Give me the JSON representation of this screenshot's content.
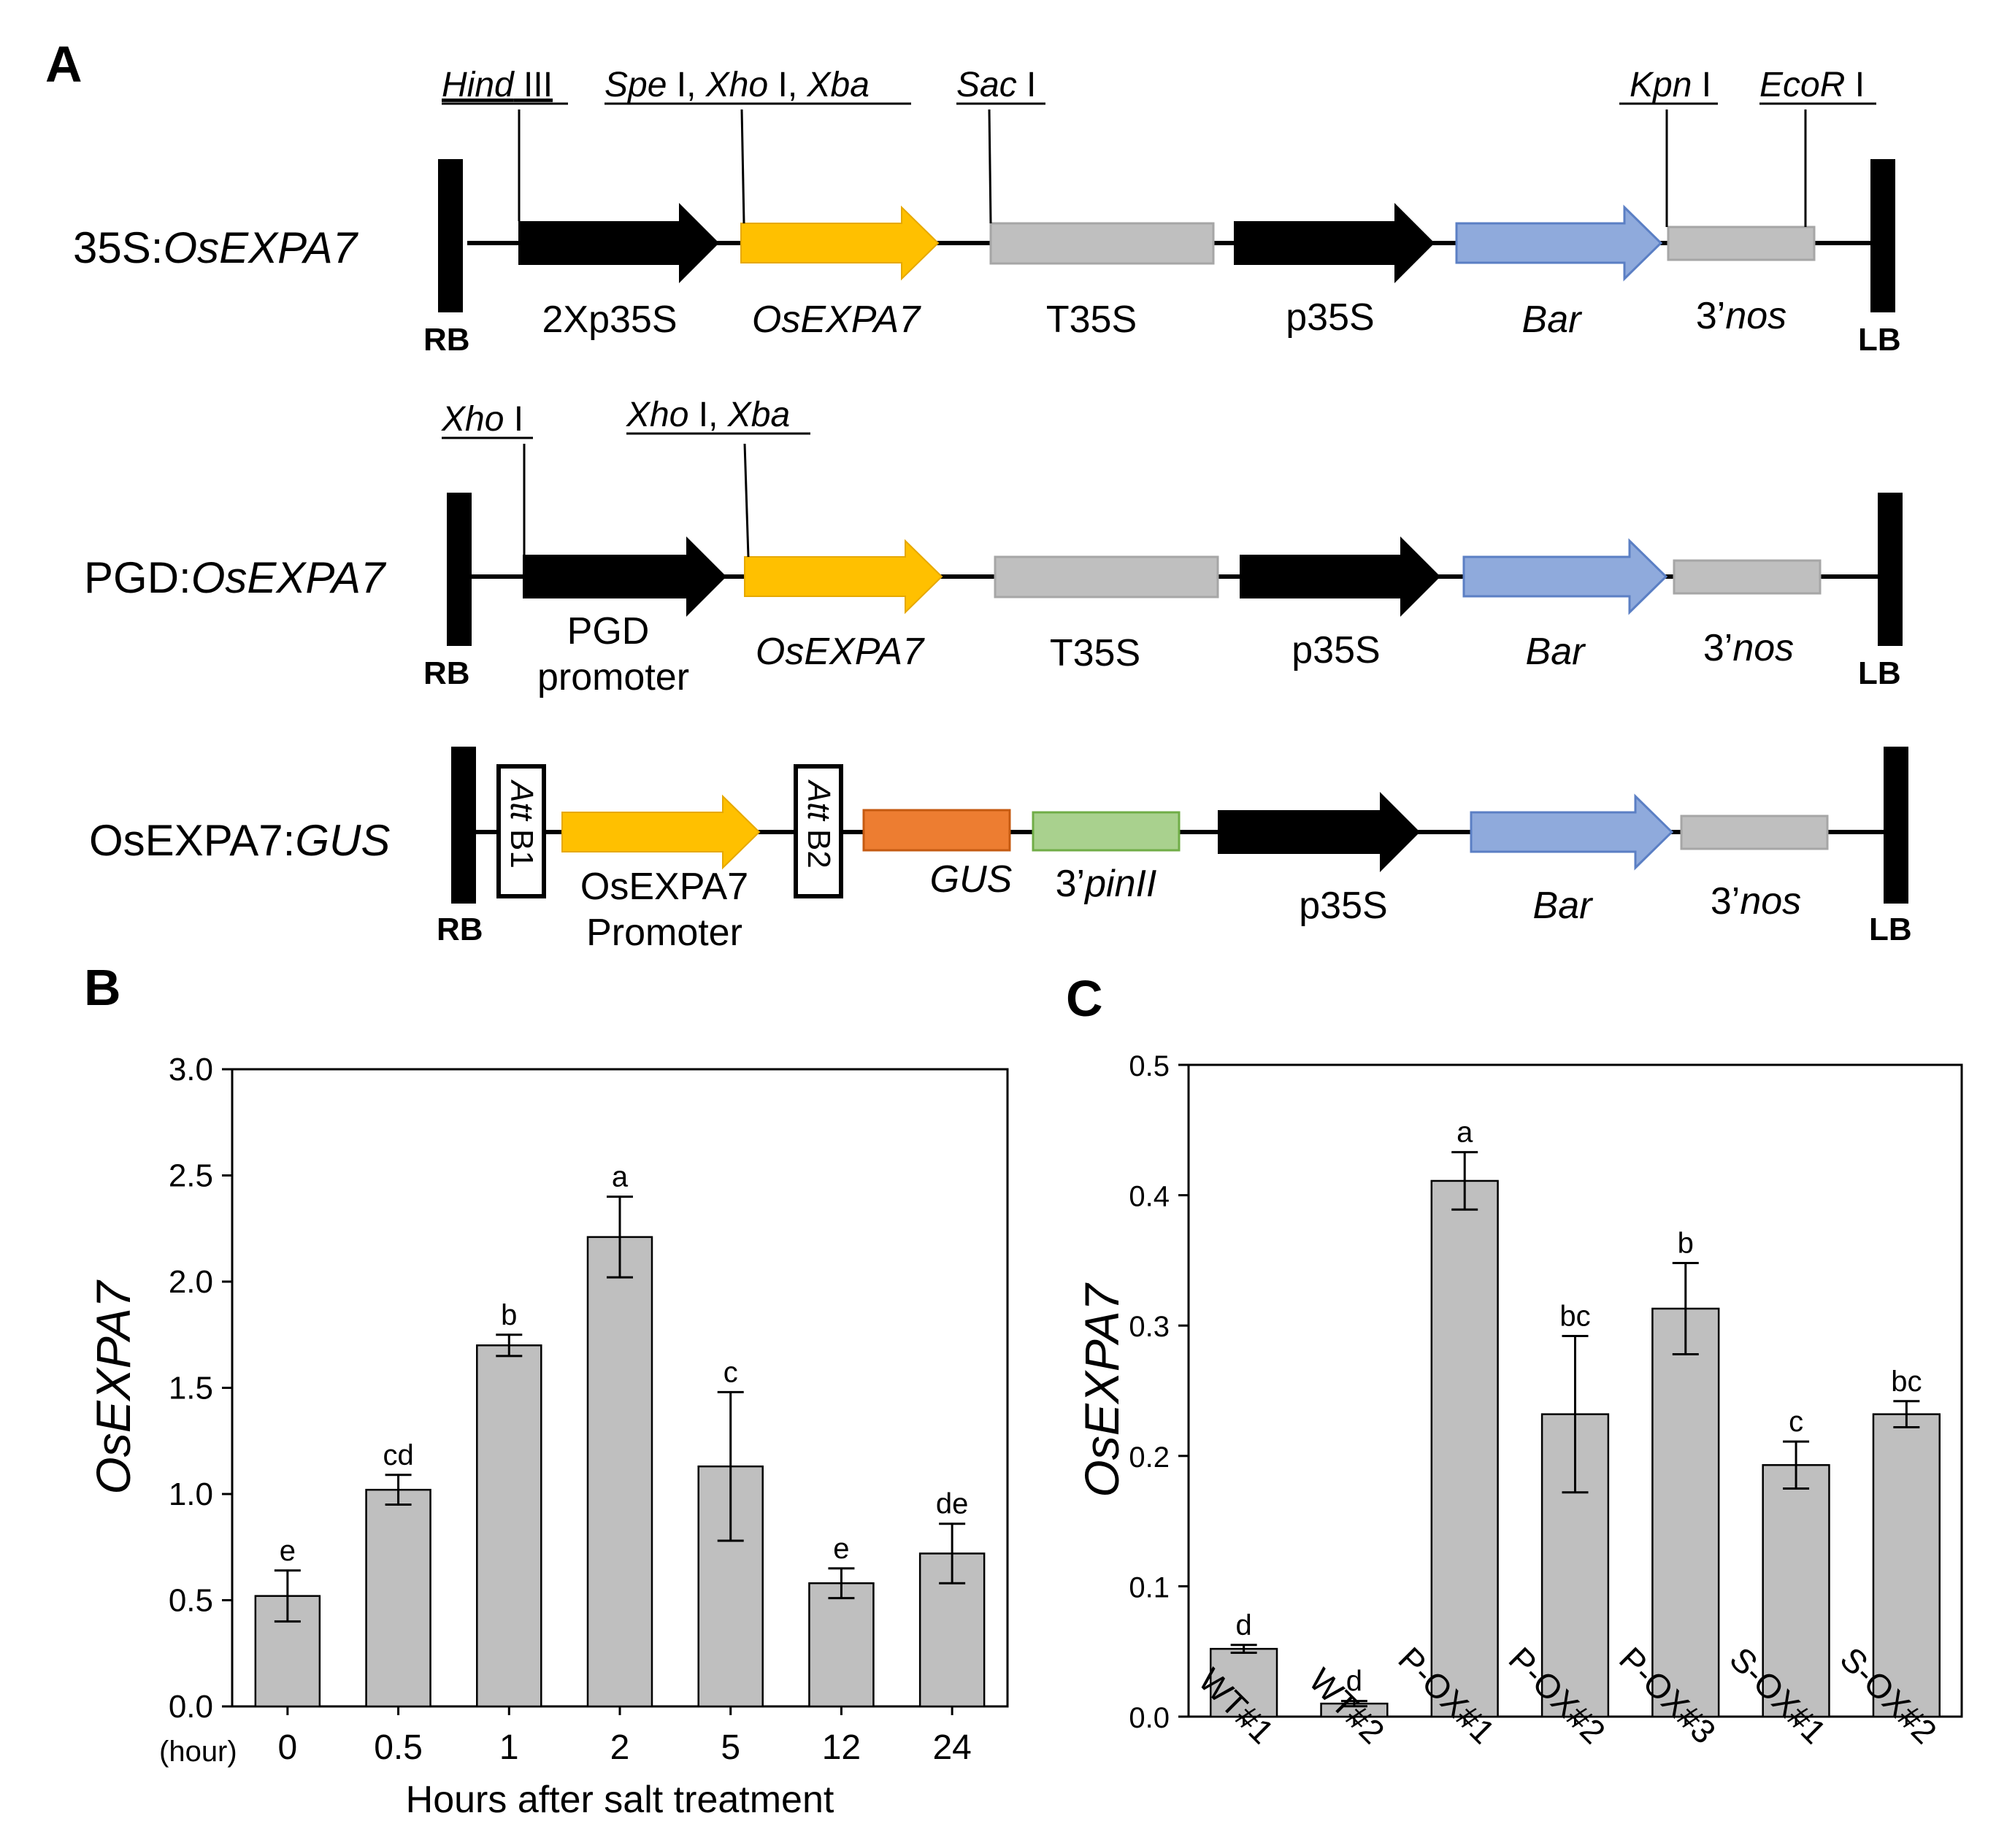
{
  "panel_a": {
    "letter": "A",
    "constructs": [
      {
        "name_plain": "35S:",
        "name_italic": "OsEXPA7",
        "sites": [
          {
            "italic": "Hind",
            "roman": " III"
          },
          {
            "italic": "Spe",
            "roman": " I, ",
            "italic2": "Xho",
            "roman2": " I,  ",
            "italic3": "Xba"
          },
          {
            "italic": "Sac",
            "roman": " I"
          },
          {
            "italic": "Kpn",
            "roman": " I"
          },
          {
            "italic": "EcoR",
            "roman": " I"
          }
        ],
        "labels": [
          "2Xp35S",
          "OsEXPA7",
          "T35S",
          "p35S",
          "Bar",
          "3’",
          "nos"
        ],
        "border_left": "RB",
        "border_right": "LB"
      },
      {
        "name_plain": "PGD:",
        "name_italic": "OsEXPA7",
        "sites": [
          {
            "italic": "Xho",
            "roman": " I"
          },
          {
            "italic": "Xho",
            "roman": " I, ",
            "italic2": "Xba"
          }
        ],
        "labels": [
          "PGD",
          "promoter",
          "OsEXPA7",
          "T35S",
          "p35S",
          "Bar",
          "3’",
          "nos"
        ],
        "border_left": "RB",
        "border_right": "LB"
      },
      {
        "name_plain": "OsEXPA7:",
        "name_italic": "GUS",
        "att": [
          {
            "italic": "Att",
            "roman": " B1"
          },
          {
            "italic": "Att",
            "roman": " B2"
          }
        ],
        "labels": [
          "OsEXPA7",
          "Promoter",
          "GUS",
          "3’",
          "pinII",
          "p35S",
          "Bar",
          "3’",
          "nos"
        ],
        "border_left": "RB",
        "border_right": "LB"
      }
    ],
    "colors": {
      "black": "#000000",
      "yellow": "#FFC000",
      "gray": "#BFBFBF",
      "gray_edge": "#A6A6A6",
      "blue": "#8FAADC",
      "blue_edge": "#5B7FC4",
      "orange": "#ED7D31",
      "orange_edge": "#C55A11",
      "green": "#A9D18E",
      "green_edge": "#70AD47"
    }
  },
  "chart_data": [
    {
      "panel": "B",
      "type": "bar",
      "title": "",
      "xlabel": "Hours after salt treatment",
      "ylabel": "OsEXPA7",
      "x_unit_label": "(hour)",
      "categories": [
        "0",
        "0.5",
        "1",
        "2",
        "5",
        "12",
        "24"
      ],
      "values": [
        0.52,
        1.02,
        1.7,
        2.21,
        1.13,
        0.58,
        0.72
      ],
      "errors": [
        0.12,
        0.07,
        0.05,
        0.19,
        0.35,
        0.07,
        0.14
      ],
      "significance": [
        "e",
        "cd",
        "b",
        "a",
        "c",
        "e",
        "de"
      ],
      "ylim": [
        0,
        3.0
      ],
      "yticks": [
        "0.0",
        "0.5",
        "1.0",
        "1.5",
        "2.0",
        "2.5",
        "3.0"
      ],
      "grid": false,
      "bar_color": "#BFBFBF"
    },
    {
      "panel": "C",
      "type": "bar",
      "title": "",
      "xlabel": "",
      "ylabel": "OsEXPA7",
      "categories": [
        "WT#1",
        "WT#2",
        "P-OX#1",
        "P-OX#2",
        "P-OX#3",
        "S-OX#1",
        "S-OX#2"
      ],
      "values": [
        0.052,
        0.01,
        0.411,
        0.232,
        0.313,
        0.193,
        0.232
      ],
      "errors": [
        0.003,
        0.002,
        0.022,
        0.06,
        0.035,
        0.018,
        0.01
      ],
      "significance": [
        "d",
        "d",
        "a",
        "bc",
        "b",
        "c",
        "bc"
      ],
      "ylim": [
        0,
        0.5
      ],
      "yticks": [
        "0.0",
        "0.1",
        "0.2",
        "0.3",
        "0.4",
        "0.5"
      ],
      "grid": false,
      "bar_color": "#BFBFBF"
    }
  ]
}
